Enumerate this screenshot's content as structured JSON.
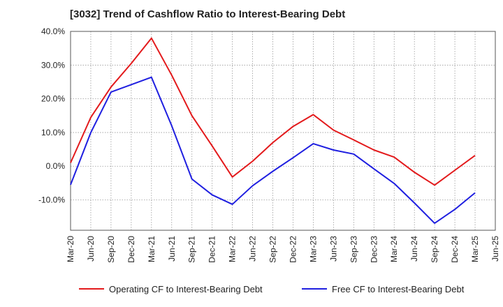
{
  "chart_data": {
    "type": "line",
    "title": "[3032]  Trend of Cashflow Ratio to Interest-Bearing Debt",
    "xlabel": "",
    "ylabel": "",
    "x": [
      "Mar-20",
      "Jun-20",
      "Sep-20",
      "Dec-20",
      "Mar-21",
      "Jun-21",
      "Sep-21",
      "Dec-21",
      "Mar-22",
      "Jun-22",
      "Sep-22",
      "Dec-22",
      "Mar-23",
      "Jun-23",
      "Sep-23",
      "Dec-23",
      "Mar-24",
      "Jun-24",
      "Sep-24",
      "Dec-24",
      "Mar-25",
      "Jun-25"
    ],
    "ylim": [
      -19,
      40
    ],
    "yticks": [
      -10,
      0,
      10,
      20,
      30,
      40
    ],
    "ytick_labels": [
      "-10.0%",
      "0.0%",
      "10.0%",
      "20.0%",
      "30.0%",
      "40.0%"
    ],
    "grid": true,
    "legend_position": "bottom",
    "series": [
      {
        "name": "Operating CF to Interest-Bearing Debt",
        "color": "#e31a1c",
        "values": [
          1.0,
          14.5,
          23.5,
          30.5,
          38.0,
          27.0,
          15.0,
          6.0,
          -3.2,
          1.5,
          7.0,
          11.8,
          15.3,
          10.7,
          7.8,
          4.8,
          2.7,
          -1.8,
          -5.6,
          -1.2,
          3.2,
          null
        ]
      },
      {
        "name": "Free CF to Interest-Bearing Debt",
        "color": "#1f1fe0",
        "values": [
          -5.5,
          10.0,
          22.0,
          24.2,
          26.4,
          12.0,
          -3.8,
          -8.5,
          -11.3,
          -5.8,
          -1.5,
          2.5,
          6.7,
          4.8,
          3.6,
          -0.8,
          -5.1,
          -10.9,
          -16.9,
          -12.8,
          -7.9,
          null
        ]
      }
    ]
  }
}
